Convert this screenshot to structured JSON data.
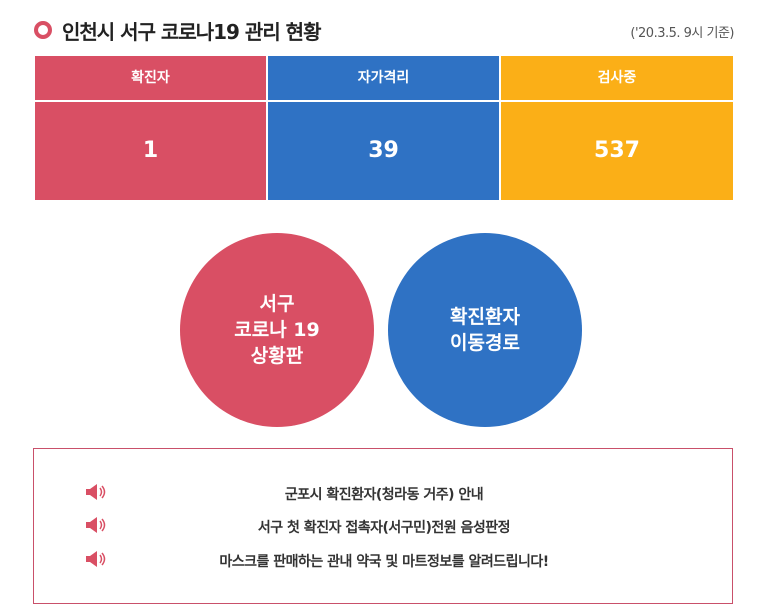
{
  "header": {
    "title": "인천시 서구 코로나19 관리 현황",
    "note": "('20.3.5. 9시 기준)"
  },
  "table": {
    "columns": [
      "확진자",
      "자가격리",
      "검사중"
    ],
    "values": [
      1,
      39,
      537
    ]
  },
  "buttons": [
    {
      "lines": [
        "서구",
        "코로나 19",
        "상황판"
      ]
    },
    {
      "lines": [
        "확진환자",
        "이동경로"
      ]
    }
  ],
  "notices": [
    "군포시 확진환자(청라동 거주) 안내",
    "서구 첫 확진자 접촉자(서구민)전원 음성판정",
    "마스크를 판매하는 관내 약국 및 마트정보를 알려드립니다!"
  ]
}
